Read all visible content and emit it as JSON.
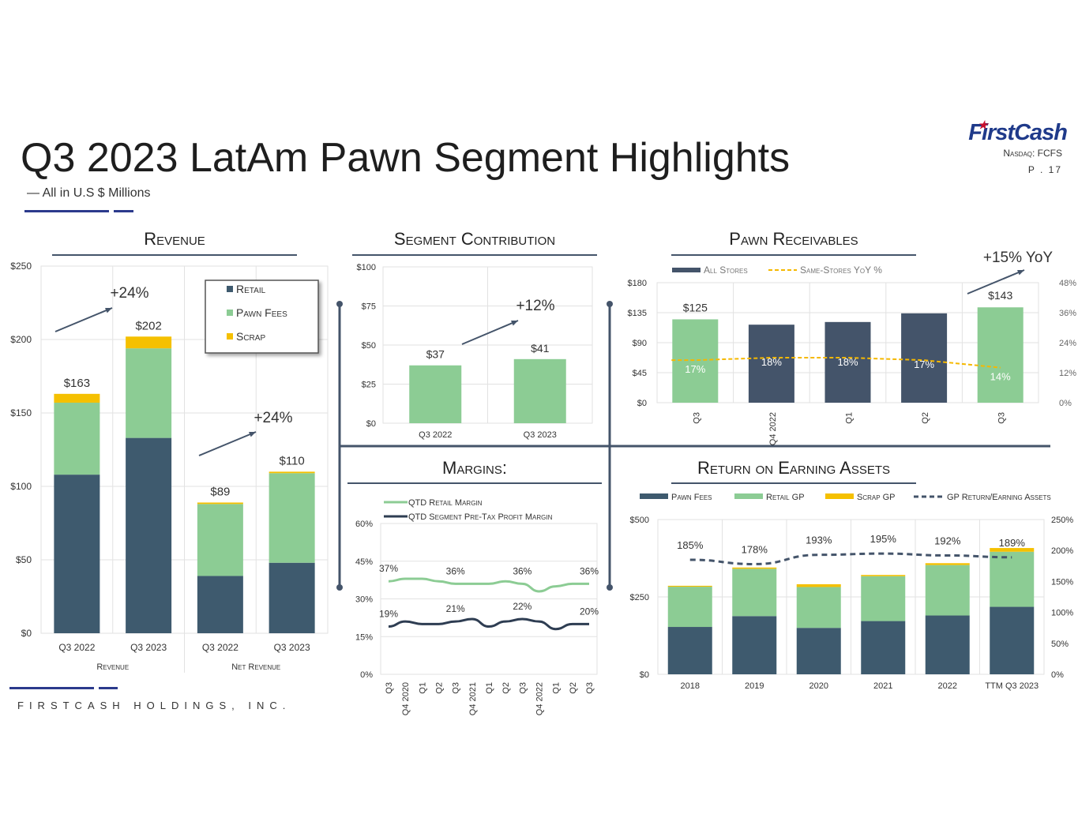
{
  "header": {
    "title": "Q3 2023 LatAm Pawn Segment Highlights",
    "subtitle": "— All in U.S $ Millions",
    "brand": "FirstCash",
    "ticker": "Nasdaq: FCFS",
    "page": "P . 17",
    "footer": "FIRSTCASH HOLDINGS, INC."
  },
  "colors": {
    "retail": "#3e5a6e",
    "pawn_fees": "#8ccc94",
    "scrap": "#f5c000",
    "navy": "#44546a",
    "line_retail": "#8ccc94",
    "line_profit": "#2e3d52",
    "dashed": "#f5b800"
  },
  "chart_data": [
    {
      "id": "revenue",
      "type": "bar",
      "title": "Revenue",
      "categories": [
        "Q3 2022",
        "Q3 2023",
        "Q3 2022",
        "Q3 2023"
      ],
      "groups": [
        "Revenue",
        "Net Revenue"
      ],
      "series": [
        {
          "name": "Retail",
          "values": [
            108,
            133,
            39,
            48
          ]
        },
        {
          "name": "Pawn Fees",
          "values": [
            49,
            61,
            49,
            61
          ]
        },
        {
          "name": "Scrap",
          "values": [
            6,
            8,
            1,
            1
          ]
        }
      ],
      "totals": [
        "$163",
        "$202",
        "$89",
        "$110"
      ],
      "annotations": [
        "+24%",
        "+24%"
      ],
      "yticks": [
        "$0",
        "$50",
        "$100",
        "$150",
        "$200",
        "$250"
      ],
      "ylim": [
        0,
        250
      ],
      "legend": "top-right"
    },
    {
      "id": "segment_contribution",
      "type": "bar",
      "title": "Segment Contribution",
      "categories": [
        "Q3 2022",
        "Q3 2023"
      ],
      "values": [
        37,
        41
      ],
      "labels": [
        "$37",
        "$41"
      ],
      "annotation": "+12%",
      "yticks": [
        "$0",
        "$25",
        "$50",
        "$75",
        "$100"
      ],
      "ylim": [
        0,
        100
      ]
    },
    {
      "id": "pawn_receivables",
      "type": "bar",
      "title": "Pawn Receivables",
      "categories": [
        "Q3",
        "Q4 2022",
        "Q1",
        "Q2",
        "Q3"
      ],
      "series": [
        {
          "name": "All Stores",
          "values": [
            125,
            117,
            121,
            134,
            143
          ]
        },
        {
          "name": "Same-Stores YoY %",
          "values": [
            17,
            18,
            18,
            17,
            14
          ]
        }
      ],
      "bar_labels": [
        "$125",
        "$143"
      ],
      "pct_labels": [
        "17%",
        "18%",
        "18%",
        "17%",
        "14%"
      ],
      "annotation": "+15% YoY",
      "yticks": [
        "$0",
        "$45",
        "$90",
        "$135",
        "$180"
      ],
      "y2ticks": [
        "0%",
        "12%",
        "24%",
        "36%",
        "48%"
      ],
      "ylim": [
        0,
        180
      ],
      "y2lim": [
        0,
        48
      ],
      "legend": "top-left"
    },
    {
      "id": "margins",
      "type": "line",
      "title": "Margins:",
      "categories": [
        "Q3",
        "Q4 2020",
        "Q1",
        "Q2",
        "Q3",
        "Q4 2021",
        "Q1",
        "Q2",
        "Q3",
        "Q4 2022",
        "Q1",
        "Q2",
        "Q3"
      ],
      "series": [
        {
          "name": "QTD Retail Margin",
          "values": [
            37,
            38,
            38,
            37,
            36,
            36,
            36,
            37,
            36,
            33,
            35,
            36,
            36
          ]
        },
        {
          "name": "QTD Segment Pre-Tax Profit Margin",
          "values": [
            19,
            21,
            20,
            20,
            21,
            22,
            19,
            21,
            22,
            21,
            18,
            20,
            20
          ]
        }
      ],
      "point_labels": [
        {
          "text": "37%",
          "series": 0,
          "index": 0
        },
        {
          "text": "36%",
          "series": 0,
          "index": 4
        },
        {
          "text": "36%",
          "series": 0,
          "index": 8
        },
        {
          "text": "36%",
          "series": 0,
          "index": 12
        },
        {
          "text": "19%",
          "series": 1,
          "index": 0
        },
        {
          "text": "21%",
          "series": 1,
          "index": 4
        },
        {
          "text": "22%",
          "series": 1,
          "index": 8
        },
        {
          "text": "20%",
          "series": 1,
          "index": 12
        }
      ],
      "yticks": [
        "0%",
        "15%",
        "30%",
        "45%",
        "60%"
      ],
      "ylim": [
        0,
        60
      ],
      "legend": "top-left"
    },
    {
      "id": "roea",
      "type": "bar",
      "title": "Return on Earning Assets",
      "categories": [
        "2018",
        "2019",
        "2020",
        "2021",
        "2022",
        "TTM Q3 2023"
      ],
      "series": [
        {
          "name": "Pawn Fees",
          "values": [
            153,
            188,
            150,
            172,
            190,
            218
          ]
        },
        {
          "name": "Retail GP",
          "values": [
            130,
            153,
            132,
            145,
            163,
            178
          ]
        },
        {
          "name": "Scrap GP",
          "values": [
            3,
            4,
            9,
            4,
            6,
            12
          ]
        },
        {
          "name": "GP Return/Earning Assets",
          "values": [
            185,
            178,
            193,
            195,
            192,
            189
          ]
        }
      ],
      "pct_labels": [
        "185%",
        "178%",
        "193%",
        "195%",
        "192%",
        "189%"
      ],
      "yticks": [
        "$0",
        "$250",
        "$500"
      ],
      "y2ticks": [
        "0%",
        "50%",
        "100%",
        "150%",
        "200%",
        "250%"
      ],
      "ylim": [
        0,
        500
      ],
      "y2lim": [
        0,
        250
      ],
      "legend": "top"
    }
  ]
}
